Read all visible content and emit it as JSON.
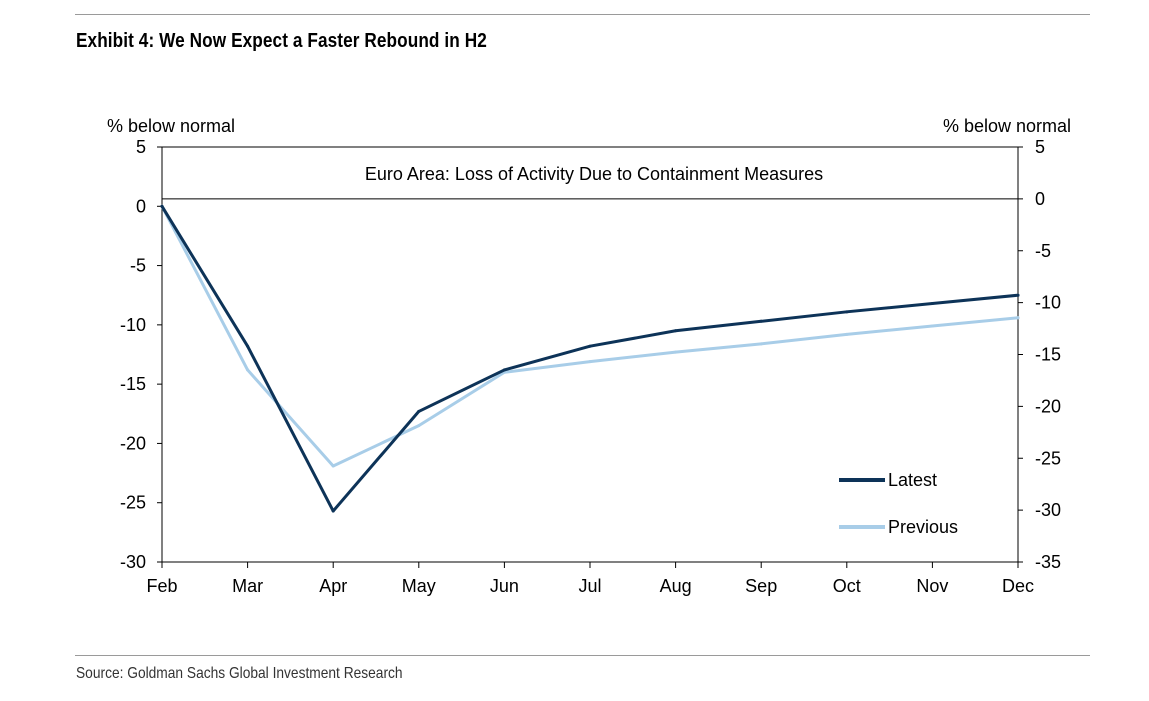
{
  "exhibit": {
    "title": "Exhibit 4: We Now Expect a Faster Rebound in H2",
    "source": "Source: Goldman Sachs Global Investment Research"
  },
  "chart_data": {
    "type": "line",
    "title": "Euro Area: Loss of Activity Due to Containment Measures",
    "ylabel_left": "% below normal",
    "ylabel_right": "% below normal",
    "xlabel": "",
    "categories": [
      "Feb",
      "Mar",
      "Apr",
      "May",
      "Jun",
      "Jul",
      "Aug",
      "Sep",
      "Oct",
      "Nov",
      "Dec"
    ],
    "ylim_left": [
      -30,
      5
    ],
    "yticks_left": [
      5,
      0,
      -5,
      -10,
      -15,
      -20,
      -25,
      -30
    ],
    "ylim_right": [
      -35,
      5
    ],
    "yticks_right": [
      5,
      0,
      -5,
      -10,
      -15,
      -20,
      -25,
      -30,
      -35
    ],
    "zero_line": true,
    "legend": {
      "placement": "bottom-right"
    },
    "series": [
      {
        "name": "Latest",
        "color": "#0d3358",
        "axis": "left",
        "values": [
          0,
          -11.8,
          -25.7,
          -17.3,
          -13.8,
          -11.8,
          -10.5,
          -9.7,
          -8.9,
          -8.2,
          -7.5
        ]
      },
      {
        "name": "Previous",
        "color": "#a8cde8",
        "axis": "left",
        "values": [
          0,
          -13.8,
          -21.9,
          -18.5,
          -14.0,
          -13.1,
          -12.3,
          -11.6,
          -10.8,
          -10.1,
          -9.4
        ]
      }
    ]
  }
}
